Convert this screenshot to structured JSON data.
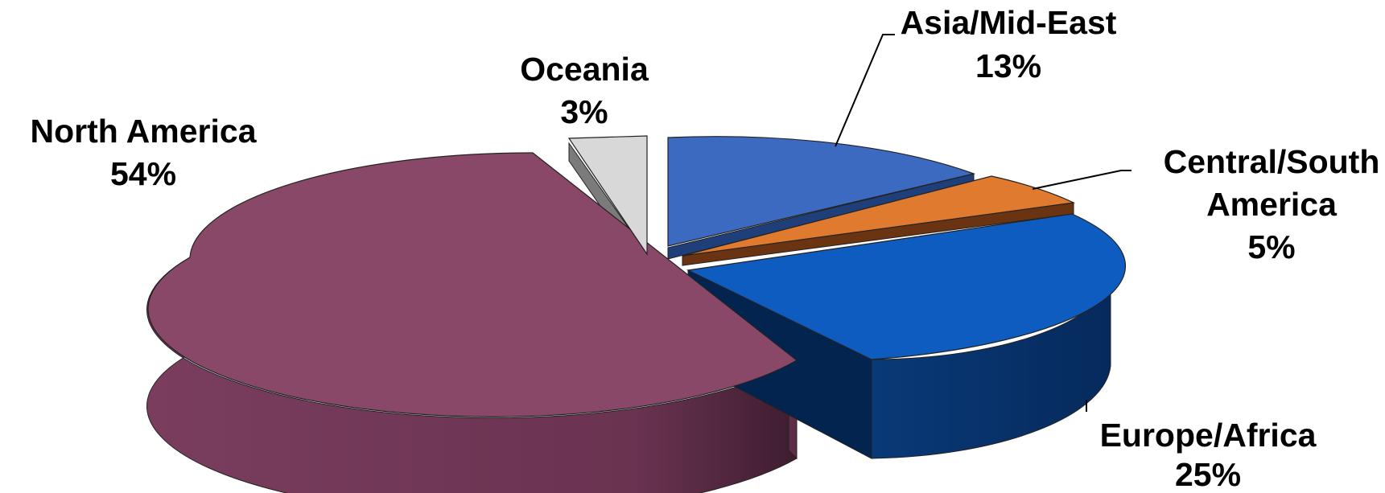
{
  "chart_data": {
    "type": "pie",
    "style": "3d-exploded",
    "unit": "%",
    "slices": [
      {
        "name": "Asia/Mid-East",
        "value": 13,
        "value_label": "13%",
        "color": "#3C6AC0",
        "side_color": "#1F3F7A"
      },
      {
        "name": "Central/South America",
        "name_lines": [
          "Central/South",
          "America"
        ],
        "value": 5,
        "value_label": "5%",
        "color": "#E07A2E",
        "side_color": "#7A3A12"
      },
      {
        "name": "Europe/Africa",
        "value": 25,
        "value_label": "25%",
        "color": "#0E5CC0",
        "side_color": "#072F66"
      },
      {
        "name": "North America",
        "value": 54,
        "value_label": "54%",
        "color": "#8A4868",
        "side_color": "#6A3050"
      },
      {
        "name": "Oceania",
        "value": 3,
        "value_label": "3%",
        "color": "#D8D8D8",
        "side_color": "#808080"
      }
    ]
  }
}
